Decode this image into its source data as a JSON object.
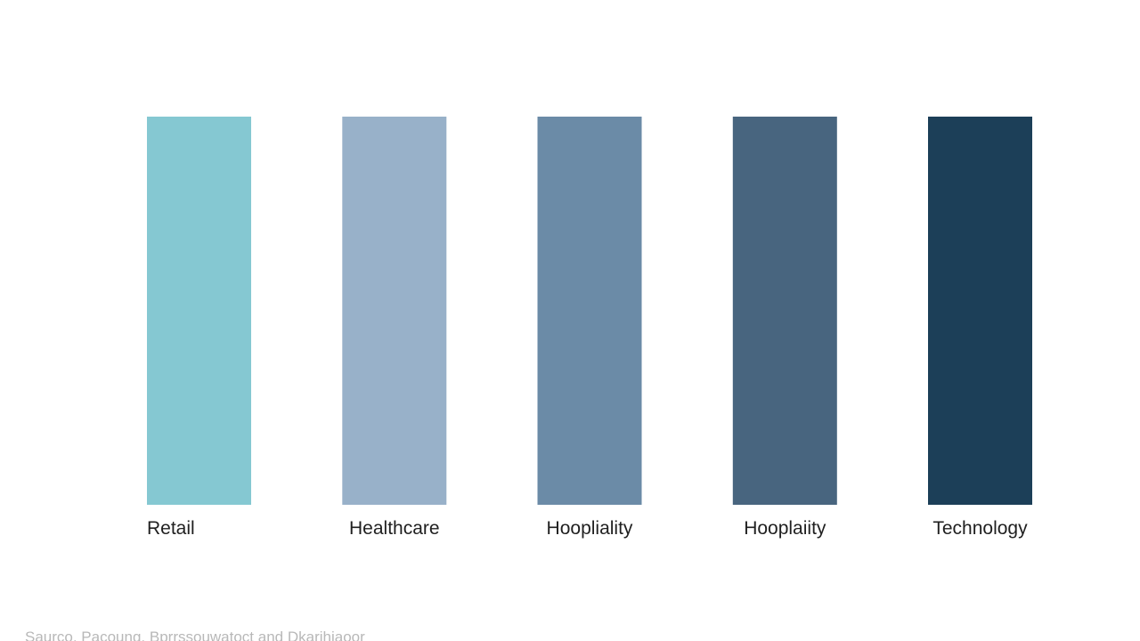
{
  "chart_data": {
    "type": "bar",
    "title": "",
    "categories": [
      "Retail",
      "Healthcare",
      "Hoopliality",
      "Hooplaiity",
      "Technology"
    ],
    "values": [
      100,
      100,
      100,
      100,
      100
    ],
    "colors": [
      "#85c8d2",
      "#98b1c9",
      "#6b8ba7",
      "#48657f",
      "#1c3f58"
    ],
    "xlabel": "",
    "ylabel": "",
    "ylim": [
      0,
      100
    ],
    "grid": false,
    "legend": "none"
  },
  "footer": {
    "source": "Saurco, Pacoung, Bprrssouwatoct and Dkarihiaoor"
  }
}
